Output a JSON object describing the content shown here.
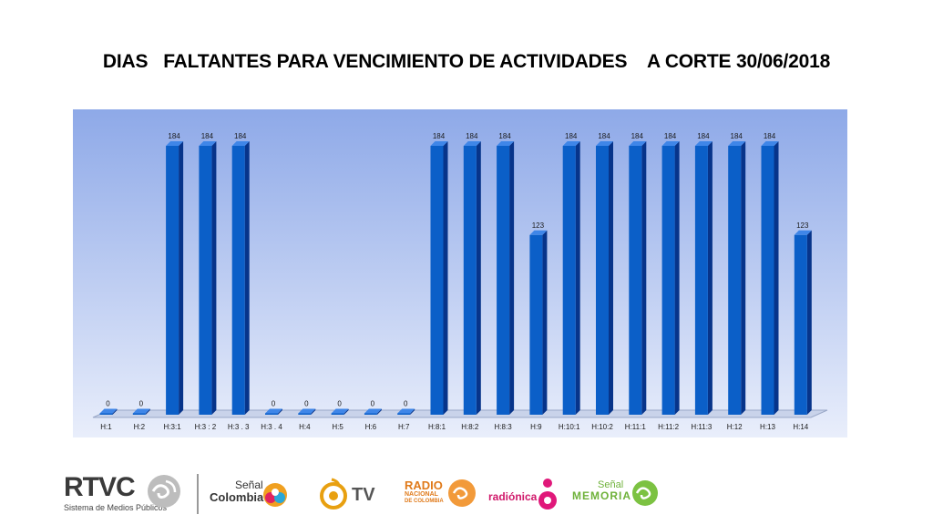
{
  "title": "DIAS   FALTANTES PARA VENCIMIENTO DE ACTIVIDADES    A CORTE 30/06/2018",
  "chart_data": {
    "type": "bar",
    "title": "DIAS   FALTANTES PARA VENCIMIENTO DE ACTIVIDADES    A CORTE 30/06/2018",
    "categories": [
      "H:1",
      "H:2",
      "H:3:1",
      "H:3 : 2",
      "H:3 . 3",
      "H:3 . 4",
      "H:4",
      "H:5",
      "H:6",
      "H:7",
      "H:8:1",
      "H:8:2",
      "H:8:3",
      "H:9",
      "H:10:1",
      "H:10:2",
      "H:11:1",
      "H:11:2",
      "H:11:3",
      "H:12",
      "H:13",
      "H:14"
    ],
    "values": [
      0,
      0,
      184,
      184,
      184,
      0,
      0,
      0,
      0,
      0,
      184,
      184,
      184,
      123,
      184,
      184,
      184,
      184,
      184,
      184,
      184,
      123
    ],
    "data_labels": [
      "0",
      "0",
      "184",
      "184",
      "184",
      "0",
      "0",
      "0",
      "0",
      "0",
      "184",
      "184",
      "184",
      "123",
      "184",
      "184",
      "184",
      "184",
      "184",
      "184",
      "184",
      "123"
    ],
    "xlabel": "",
    "ylabel": "",
    "ylim": [
      0,
      184
    ],
    "grid": false,
    "legend": "none",
    "colors": {
      "bar_front": "#0b5fc8",
      "bar_side": "#07348a",
      "bar_top": "#3f86e8",
      "bg_top": "#8ea9e8",
      "bg_bottom": "#e9eefb"
    }
  },
  "footer": {
    "rtvc": {
      "name": "RTVC",
      "tagline": "Sistema de Medios Públicos"
    },
    "senal_colombia": {
      "line1": "Señal",
      "line2": "Colombia"
    },
    "tv": {
      "label": "TV"
    },
    "radio_nacional": {
      "line1": "RADIO",
      "line2": "NACIONAL",
      "line3": "DE COLOMBIA"
    },
    "radionica": {
      "label": "radiónica"
    },
    "senal_memoria": {
      "line1": "Señal",
      "line2": "MEMORIA"
    }
  }
}
